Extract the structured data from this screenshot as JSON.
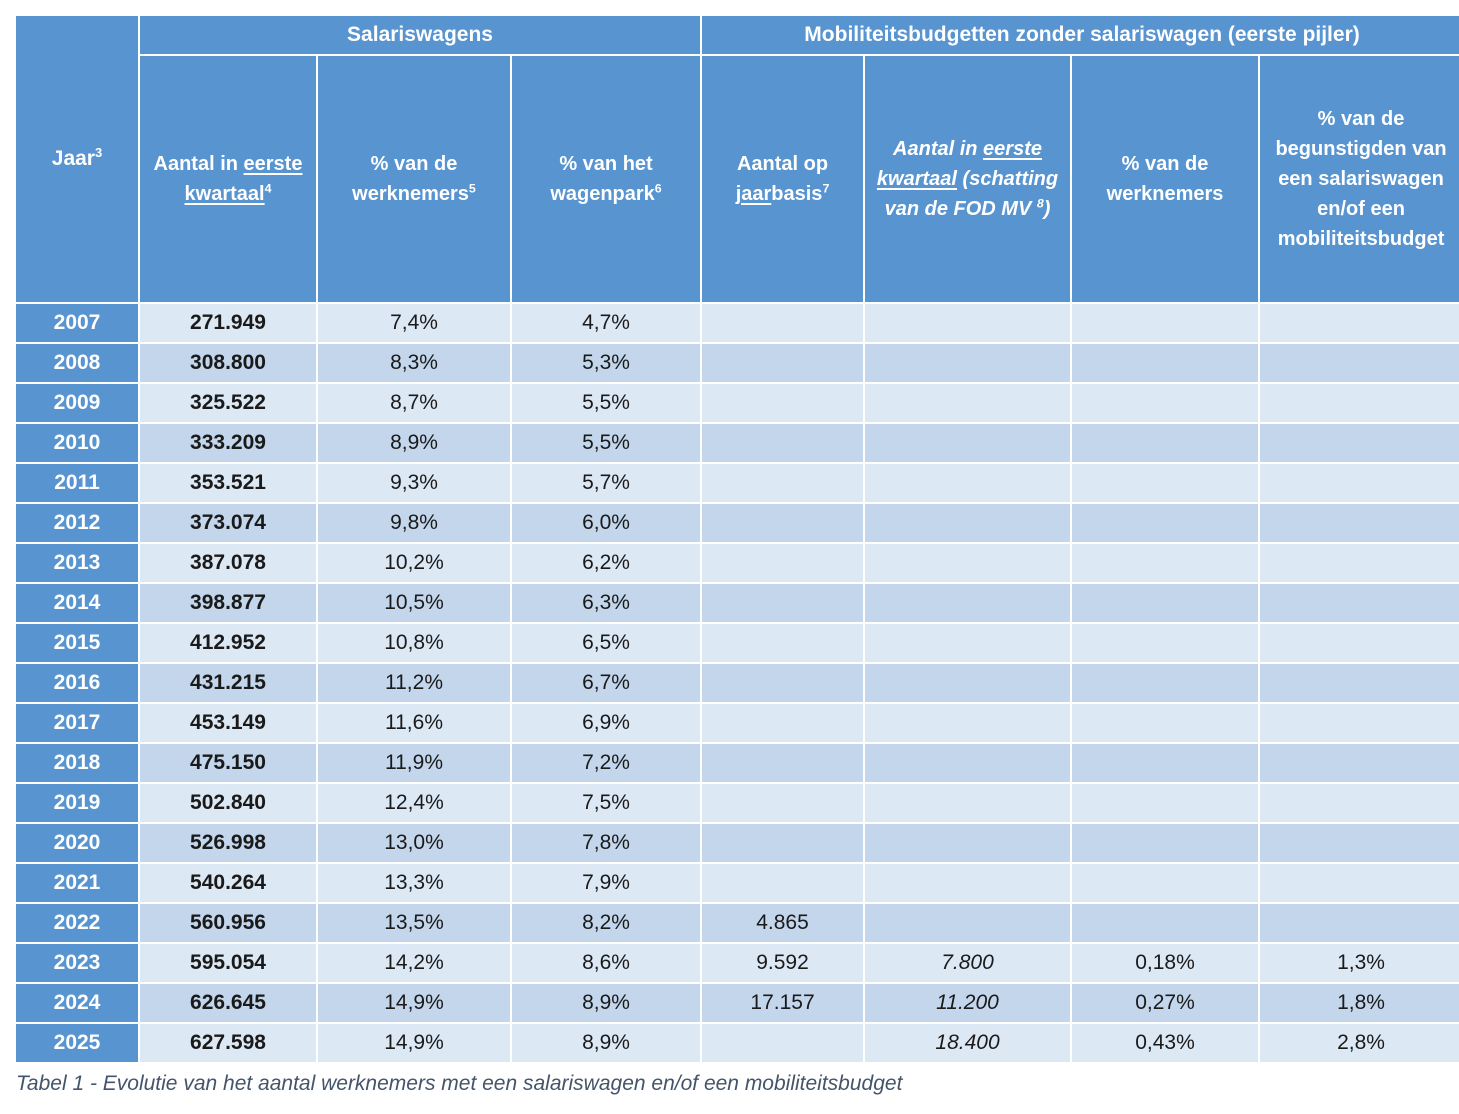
{
  "colors": {
    "header_blue": "#5794d0",
    "band_light": "#dde8f5",
    "band_dark": "#c3d6ec",
    "caption_text": "#44546a",
    "header_text": "#ffffff",
    "data_text": "#1a1a1a"
  },
  "header": {
    "jaar_label": "Jaar",
    "jaar_sup": "3",
    "group_salariswagens": "Salariswagens",
    "group_mobiliteit": "Mobiliteitsbudgetten zonder salariswagen (eerste pijler)",
    "col_q1_prefix": "Aantal in ",
    "col_q1_underline": "eerste kwartaal",
    "col_q1_sup": "4",
    "col_pct_workers": "% van de werknemers",
    "col_pct_workers_sup": "5",
    "col_pct_fleet": "% van het wagenpark",
    "col_pct_fleet_sup": "6",
    "col_yearly_prefix": "Aantal op ",
    "col_yearly_underline": "jaar",
    "col_yearly_rest": "basis",
    "col_yearly_sup": "7",
    "col_est_prefix": "Aantal in ",
    "col_est_underline": "eerste kwartaal",
    "col_est_mid": " (schatting van de FOD MV ",
    "col_est_sup": "8",
    "col_est_close": ")",
    "col_pct_workers2": "% van de werknemers",
    "col_pct_benef": "% van de begunstigden van een salariswagen en/of een mobiliteitsbudget"
  },
  "caption": "Tabel 1 - Evolutie van het aantal werknemers met een salariswagen en/of een mobiliteitsbudget",
  "chart_data": {
    "type": "table",
    "title": "Tabel 1 - Evolutie van het aantal werknemers met een salariswagen en/of een mobiliteitsbudget",
    "column_groups": [
      {
        "label": "",
        "span": 1
      },
      {
        "label": "Salariswagens",
        "span": 3
      },
      {
        "label": "Mobiliteitsbudgetten zonder salariswagen (eerste pijler)",
        "span": 4
      }
    ],
    "columns": [
      "Jaar (3)",
      "Aantal in eerste kwartaal (4)",
      "% van de werknemers (5)",
      "% van het wagenpark (6)",
      "Aantal op jaarbasis (7)",
      "Aantal in eerste kwartaal (schatting van de FOD MV (8))",
      "% van de werknemers",
      "% van de begunstigden van een salariswagen en/of een mobiliteitsbudget"
    ],
    "rows": [
      {
        "year": "2007",
        "q1": "271.949",
        "pct_workers": "7,4%",
        "pct_fleet": "4,7%",
        "yearly": "",
        "q1_est": "",
        "pct_workers2": "",
        "pct_benef": ""
      },
      {
        "year": "2008",
        "q1": "308.800",
        "pct_workers": "8,3%",
        "pct_fleet": "5,3%",
        "yearly": "",
        "q1_est": "",
        "pct_workers2": "",
        "pct_benef": ""
      },
      {
        "year": "2009",
        "q1": "325.522",
        "pct_workers": "8,7%",
        "pct_fleet": "5,5%",
        "yearly": "",
        "q1_est": "",
        "pct_workers2": "",
        "pct_benef": ""
      },
      {
        "year": "2010",
        "q1": "333.209",
        "pct_workers": "8,9%",
        "pct_fleet": "5,5%",
        "yearly": "",
        "q1_est": "",
        "pct_workers2": "",
        "pct_benef": ""
      },
      {
        "year": "2011",
        "q1": "353.521",
        "pct_workers": "9,3%",
        "pct_fleet": "5,7%",
        "yearly": "",
        "q1_est": "",
        "pct_workers2": "",
        "pct_benef": ""
      },
      {
        "year": "2012",
        "q1": "373.074",
        "pct_workers": "9,8%",
        "pct_fleet": "6,0%",
        "yearly": "",
        "q1_est": "",
        "pct_workers2": "",
        "pct_benef": ""
      },
      {
        "year": "2013",
        "q1": "387.078",
        "pct_workers": "10,2%",
        "pct_fleet": "6,2%",
        "yearly": "",
        "q1_est": "",
        "pct_workers2": "",
        "pct_benef": ""
      },
      {
        "year": "2014",
        "q1": "398.877",
        "pct_workers": "10,5%",
        "pct_fleet": "6,3%",
        "yearly": "",
        "q1_est": "",
        "pct_workers2": "",
        "pct_benef": ""
      },
      {
        "year": "2015",
        "q1": "412.952",
        "pct_workers": "10,8%",
        "pct_fleet": "6,5%",
        "yearly": "",
        "q1_est": "",
        "pct_workers2": "",
        "pct_benef": ""
      },
      {
        "year": "2016",
        "q1": "431.215",
        "pct_workers": "11,2%",
        "pct_fleet": "6,7%",
        "yearly": "",
        "q1_est": "",
        "pct_workers2": "",
        "pct_benef": ""
      },
      {
        "year": "2017",
        "q1": "453.149",
        "pct_workers": "11,6%",
        "pct_fleet": "6,9%",
        "yearly": "",
        "q1_est": "",
        "pct_workers2": "",
        "pct_benef": ""
      },
      {
        "year": "2018",
        "q1": "475.150",
        "pct_workers": "11,9%",
        "pct_fleet": "7,2%",
        "yearly": "",
        "q1_est": "",
        "pct_workers2": "",
        "pct_benef": ""
      },
      {
        "year": "2019",
        "q1": "502.840",
        "pct_workers": "12,4%",
        "pct_fleet": "7,5%",
        "yearly": "",
        "q1_est": "",
        "pct_workers2": "",
        "pct_benef": ""
      },
      {
        "year": "2020",
        "q1": "526.998",
        "pct_workers": "13,0%",
        "pct_fleet": "7,8%",
        "yearly": "",
        "q1_est": "",
        "pct_workers2": "",
        "pct_benef": ""
      },
      {
        "year": "2021",
        "q1": "540.264",
        "pct_workers": "13,3%",
        "pct_fleet": "7,9%",
        "yearly": "",
        "q1_est": "",
        "pct_workers2": "",
        "pct_benef": ""
      },
      {
        "year": "2022",
        "q1": "560.956",
        "pct_workers": "13,5%",
        "pct_fleet": "8,2%",
        "yearly": "4.865",
        "q1_est": "",
        "pct_workers2": "",
        "pct_benef": ""
      },
      {
        "year": "2023",
        "q1": "595.054",
        "pct_workers": "14,2%",
        "pct_fleet": "8,6%",
        "yearly": "9.592",
        "q1_est": "7.800",
        "pct_workers2": "0,18%",
        "pct_benef": "1,3%"
      },
      {
        "year": "2024",
        "q1": "626.645",
        "pct_workers": "14,9%",
        "pct_fleet": "8,9%",
        "yearly": "17.157",
        "q1_est": "11.200",
        "pct_workers2": "0,27%",
        "pct_benef": "1,8%"
      },
      {
        "year": "2025",
        "q1": "627.598",
        "pct_workers": "14,9%",
        "pct_fleet": "8,9%",
        "yearly": "",
        "q1_est": "18.400",
        "pct_workers2": "0,43%",
        "pct_benef": "2,8%"
      }
    ]
  }
}
